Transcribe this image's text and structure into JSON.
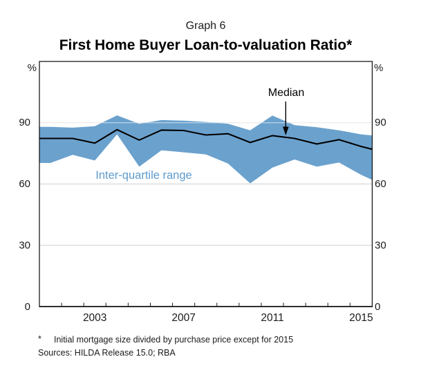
{
  "page": {
    "graph_label": "Graph 6",
    "title": "First Home Buyer Loan-to-valuation Ratio*"
  },
  "annotations": {
    "median": "Median",
    "iqr": "Inter-quartile range"
  },
  "axes": {
    "unit_left": "%",
    "unit_right": "%",
    "y_tick_labels": [
      90,
      60,
      30,
      0
    ],
    "x_tick_labels": [
      "2003",
      "2007",
      "2011",
      "2015"
    ]
  },
  "footnotes": {
    "marker": "*",
    "note": "Initial mortgage size divided by purchase price except for 2015",
    "sources": "Sources:  HILDA Release 15.0; RBA"
  },
  "colors": {
    "band": "#6BA1CD",
    "median_line": "#000000",
    "iqr_label_text": "#5E9BCD",
    "grid": "#CFCFCF",
    "axis": "#1A1A1A"
  },
  "chart_data": {
    "type": "area",
    "title": "First Home Buyer Loan-to-valuation Ratio*",
    "ylabel": "%",
    "x": [
      2001,
      2002,
      2003,
      2004,
      2005,
      2006,
      2007,
      2008,
      2009,
      2010,
      2011,
      2012,
      2013,
      2014,
      2015
    ],
    "series": [
      {
        "name": "Median",
        "values": [
          82.3,
          82.3,
          80.0,
          86.6,
          81.5,
          86.4,
          86.2,
          84.0,
          84.6,
          80.3,
          83.7,
          82.3,
          79.6,
          81.7,
          78.4
        ]
      },
      {
        "name": "Upper quartile",
        "values": [
          88.0,
          87.6,
          88.3,
          93.6,
          89.5,
          91.3,
          91.0,
          90.4,
          89.5,
          86.3,
          93.5,
          88.8,
          87.8,
          86.3,
          84.3
        ]
      },
      {
        "name": "Lower quartile",
        "values": [
          70.3,
          74.3,
          71.5,
          84.3,
          68.5,
          76.5,
          75.5,
          74.5,
          70.0,
          60.3,
          68.0,
          72.0,
          68.5,
          70.5,
          64.5
        ]
      }
    ],
    "edge_extension": {
      "left": {
        "median": 82.3,
        "upper": 88.0,
        "lower": 70.3
      },
      "right": {
        "median": 77.0,
        "upper": 83.8,
        "lower": 62.0
      }
    },
    "x_range": [
      2001,
      2016
    ],
    "ylim": [
      0,
      120
    ],
    "y_gridlines": [
      30,
      60,
      90
    ],
    "grid": true,
    "legend": "none"
  }
}
